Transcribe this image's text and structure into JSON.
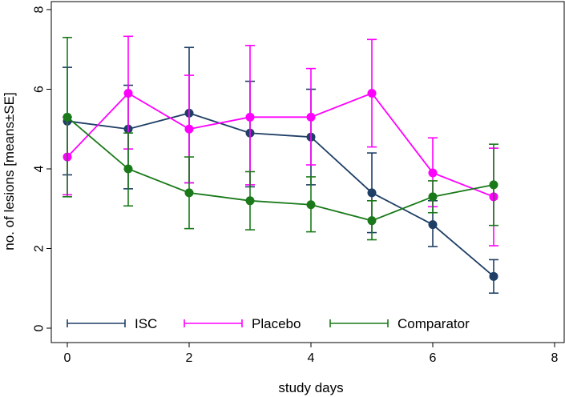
{
  "chart_data": {
    "type": "line",
    "title": "",
    "xlabel": "study days",
    "ylabel": "no. of lesions [means±SE]",
    "xlim": [
      0,
      8
    ],
    "ylim": [
      0,
      8
    ],
    "x_ticks": [
      0,
      2,
      4,
      6,
      8
    ],
    "y_ticks": [
      0,
      2,
      4,
      6,
      8
    ],
    "x_tick_labels": [
      "0",
      "2",
      "4",
      "6",
      "8"
    ],
    "y_tick_labels": [
      "0",
      "2",
      "4",
      "6",
      "8"
    ],
    "grid": false,
    "legend_position": "bottom-inside",
    "series": [
      {
        "name": "ISC",
        "color": "#1f3f66",
        "x": [
          0,
          1,
          2,
          3,
          4,
          5,
          6,
          7
        ],
        "values": [
          5.2,
          5.0,
          5.4,
          4.9,
          4.8,
          3.4,
          2.6,
          1.3
        ],
        "error_low": [
          3.85,
          3.5,
          3.65,
          3.55,
          3.6,
          2.4,
          2.05,
          0.88
        ],
        "error_high": [
          6.55,
          6.1,
          7.05,
          6.2,
          6.0,
          4.4,
          3.2,
          1.72
        ]
      },
      {
        "name": "Placebo",
        "color": "#ff00ff",
        "x": [
          0,
          1,
          2,
          3,
          4,
          5,
          6,
          7
        ],
        "values": [
          4.3,
          5.9,
          5.0,
          5.3,
          5.3,
          5.9,
          3.9,
          3.3
        ],
        "error_low": [
          3.35,
          4.5,
          3.65,
          3.6,
          4.1,
          4.55,
          3.05,
          2.07
        ],
        "error_high": [
          5.3,
          7.33,
          6.35,
          7.1,
          6.52,
          7.25,
          4.78,
          4.52
        ]
      },
      {
        "name": "Comparator",
        "color": "#1a7a1a",
        "x": [
          0,
          1,
          2,
          3,
          4,
          5,
          6,
          7
        ],
        "values": [
          5.3,
          4.0,
          3.4,
          3.2,
          3.1,
          2.7,
          3.3,
          3.6
        ],
        "error_low": [
          3.3,
          3.07,
          2.5,
          2.47,
          2.42,
          2.22,
          2.9,
          2.58
        ],
        "error_high": [
          7.3,
          4.9,
          4.3,
          3.93,
          3.8,
          3.2,
          3.7,
          4.62
        ]
      }
    ]
  }
}
